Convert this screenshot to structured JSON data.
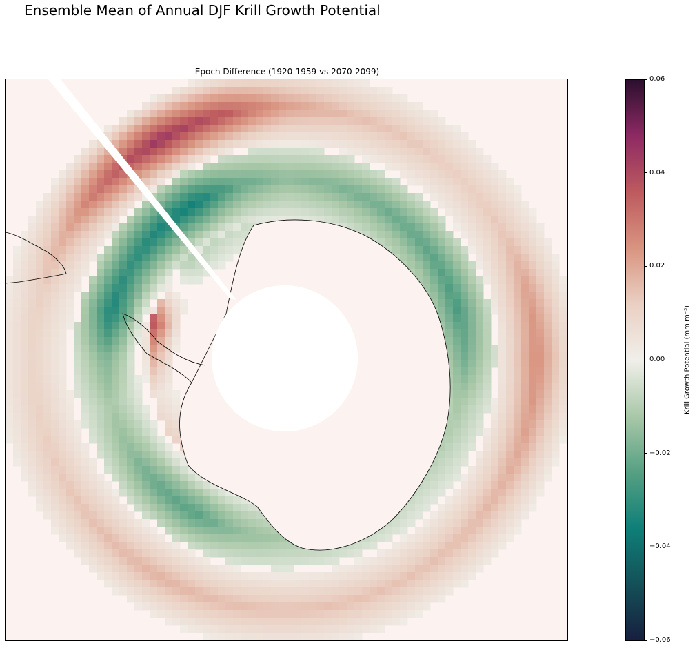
{
  "figure": {
    "suptitle": "Ensemble Mean of Annual DJF Krill Growth Potential"
  },
  "colors": {
    "cmap": [
      "#171f3f",
      "#145057",
      "#0f7f78",
      "#56a083",
      "#a9c8a8",
      "#f1efea",
      "#ead0c3",
      "#d99480",
      "#bd5a5f",
      "#8e2a63",
      "#2b0f2e"
    ],
    "land": "#fcf3f1",
    "ocean_background": "#fcf3f1"
  },
  "chart_data": {
    "type": "heatmap",
    "projection": "south-polar-stereographic",
    "title": "Epoch Difference (1920-1959 vs 2070-2099)",
    "colorbar": {
      "label": "Krill Growth Potential (mm m⁻³)",
      "vmin": -0.06,
      "vmax": 0.06,
      "ticks": [
        -0.06,
        -0.04,
        -0.02,
        0.0,
        0.02,
        0.04,
        0.06
      ],
      "tick_labels": [
        "−0.06",
        "−0.04",
        "−0.02",
        "0.00",
        "0.02",
        "0.04",
        "0.06"
      ]
    },
    "field_by_longitude": {
      "longitude_deg": [
        -180,
        -165,
        -150,
        -135,
        -120,
        -105,
        -90,
        -75,
        -60,
        -45,
        -30,
        -15,
        0,
        15,
        30,
        45,
        60,
        75,
        90,
        105,
        120,
        135,
        150,
        165
      ],
      "outer_ring_value": [
        0.015,
        0.016,
        0.018,
        0.016,
        0.014,
        0.012,
        0.01,
        0.012,
        0.02,
        0.034,
        0.045,
        0.038,
        0.022,
        0.016,
        0.014,
        0.012,
        0.014,
        0.022,
        0.026,
        0.022,
        0.018,
        0.016,
        0.015,
        0.015
      ],
      "middle_ring_value": [
        -0.012,
        -0.016,
        -0.024,
        -0.022,
        -0.016,
        -0.012,
        -0.018,
        -0.034,
        -0.03,
        -0.034,
        -0.036,
        -0.022,
        -0.016,
        -0.018,
        -0.02,
        -0.022,
        -0.024,
        -0.026,
        -0.02,
        -0.012,
        -0.01,
        -0.008,
        -0.01,
        -0.012
      ],
      "coastal_value": [
        0.01,
        0.006,
        0.012,
        0.014,
        0.01,
        0.006,
        0.024,
        0.04,
        0.004,
        -0.01,
        -0.008,
        -0.006,
        -0.008,
        -0.01,
        -0.014,
        -0.016,
        -0.018,
        -0.016,
        -0.01,
        -0.006,
        0.004,
        0.02,
        0.018,
        0.012
      ]
    }
  }
}
